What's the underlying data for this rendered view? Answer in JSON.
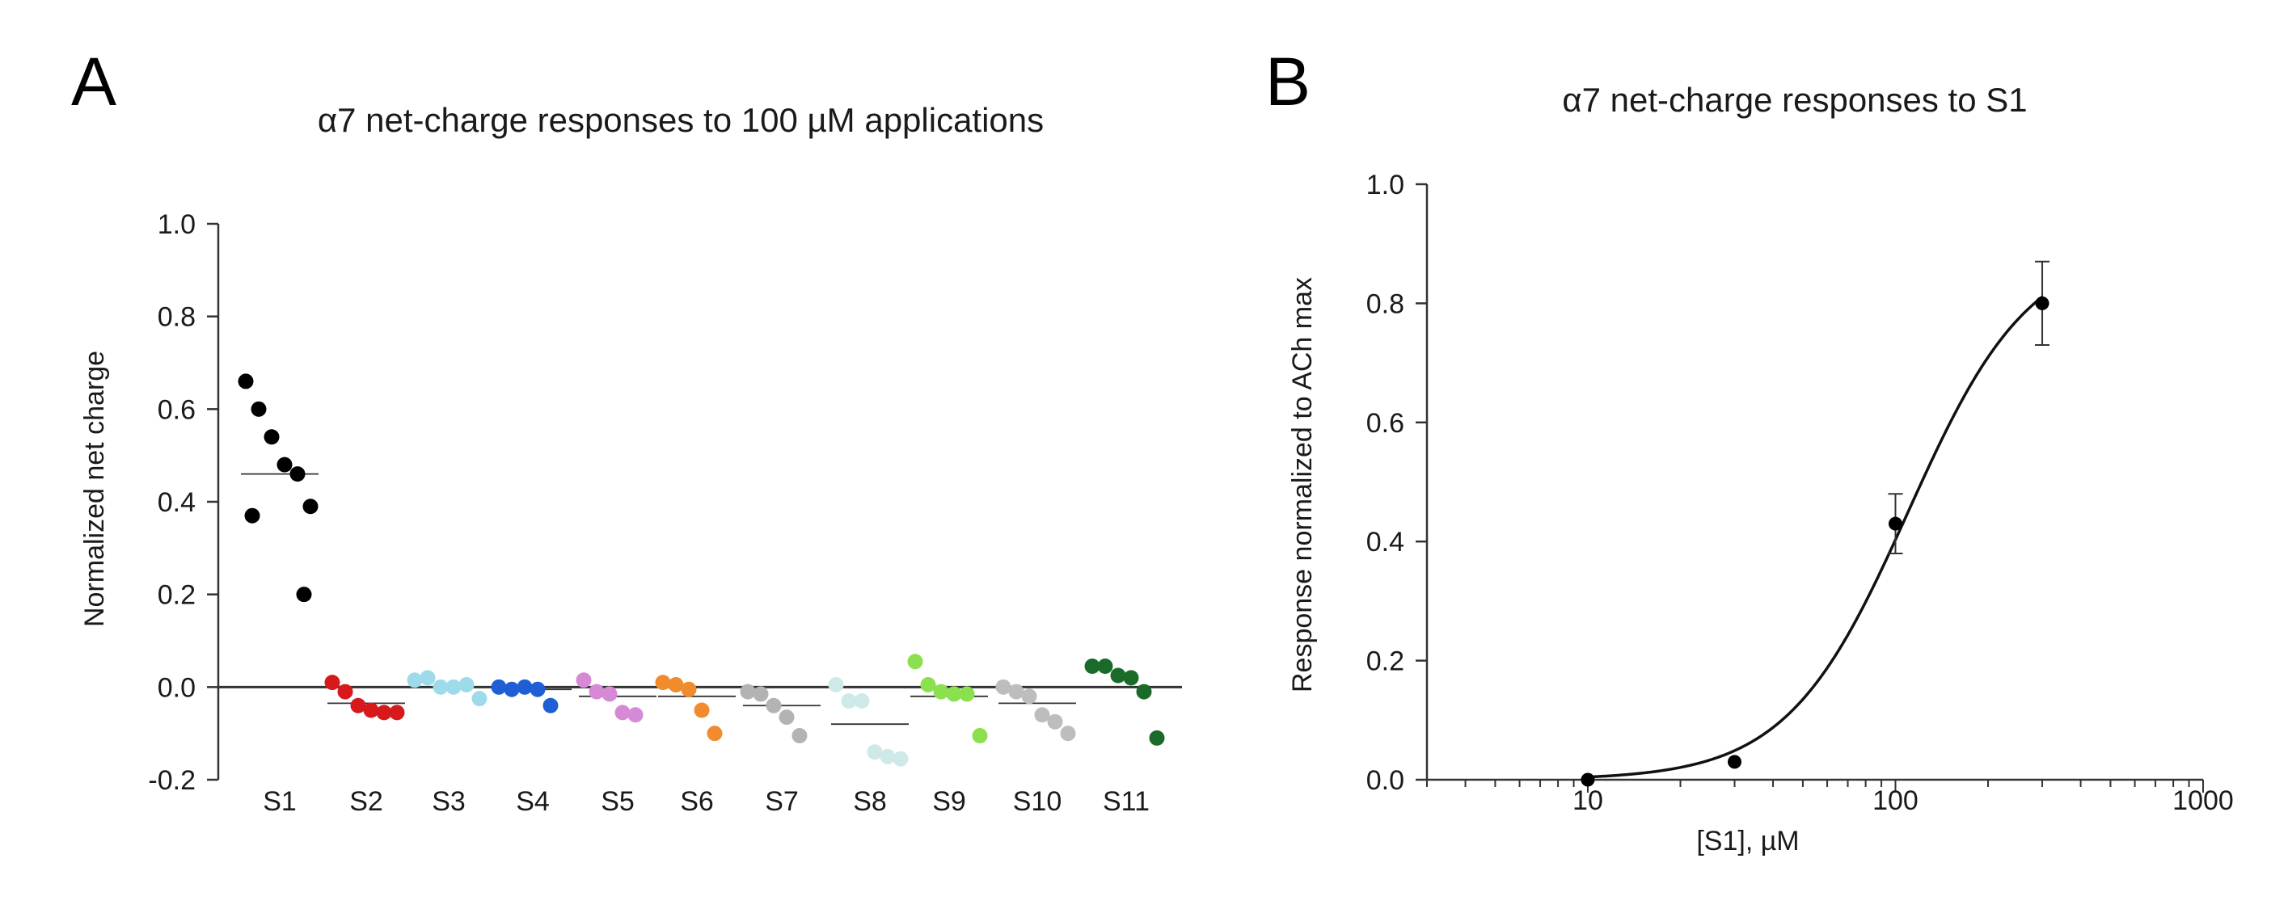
{
  "figure": {
    "panel_a_letter": "A",
    "panel_b_letter": "B"
  },
  "chart_data": [
    {
      "panel": "A",
      "type": "scatter",
      "title": "α7 net-charge responses to 100 µM applications",
      "ylabel": "Normalized net charge",
      "xlabel": "",
      "ylim": [
        -0.2,
        1.0
      ],
      "yticks": [
        -0.2,
        0.0,
        0.2,
        0.4,
        0.6,
        0.8,
        1.0
      ],
      "ytick_labels": [
        "-0.2",
        "0.0",
        "0.2",
        "0.4",
        "0.6",
        "0.8",
        "1.0"
      ],
      "reference_line": 0.0,
      "series": [
        {
          "name": "S1",
          "color": "#000000",
          "values": [
            0.66,
            0.6,
            0.54,
            0.48,
            0.46,
            0.39,
            0.37,
            0.2
          ],
          "mean": 0.46
        },
        {
          "name": "S2",
          "color": "#d7191c",
          "values": [
            0.01,
            -0.01,
            -0.04,
            -0.05,
            -0.055,
            -0.055
          ],
          "mean": -0.035
        },
        {
          "name": "S3",
          "color": "#9edbea",
          "values": [
            0.015,
            0.02,
            0.0,
            0.0,
            0.005,
            -0.025
          ],
          "mean": 0.0
        },
        {
          "name": "S4",
          "color": "#1f5fd6",
          "values": [
            0.0,
            -0.005,
            0.0,
            -0.005,
            -0.04
          ],
          "mean": -0.005
        },
        {
          "name": "S5",
          "color": "#d68ad6",
          "values": [
            0.015,
            -0.01,
            -0.015,
            -0.055,
            -0.06
          ],
          "mean": -0.02
        },
        {
          "name": "S6",
          "color": "#f08c2e",
          "values": [
            0.01,
            0.005,
            -0.005,
            -0.05,
            -0.1
          ],
          "mean": -0.02
        },
        {
          "name": "S7",
          "color": "#b3b3b3",
          "values": [
            -0.01,
            -0.015,
            -0.04,
            -0.065,
            -0.105
          ],
          "mean": -0.04
        },
        {
          "name": "S8",
          "color": "#cfe9e9",
          "values": [
            0.005,
            -0.03,
            -0.03,
            -0.14,
            -0.15,
            -0.155
          ],
          "mean": -0.08
        },
        {
          "name": "S9",
          "color": "#8be04e",
          "values": [
            0.055,
            0.005,
            -0.01,
            -0.015,
            -0.015,
            -0.105
          ],
          "mean": -0.02
        },
        {
          "name": "S10",
          "color": "#bdbdbd",
          "values": [
            0.0,
            -0.01,
            -0.02,
            -0.06,
            -0.075,
            -0.1
          ],
          "mean": -0.035
        },
        {
          "name": "S11",
          "color": "#1a6b2a",
          "values": [
            0.045,
            0.045,
            0.025,
            0.02,
            -0.01,
            -0.11
          ],
          "mean": 0.0
        }
      ]
    },
    {
      "panel": "B",
      "type": "line",
      "title": "α7 net-charge responses to S1",
      "xlabel": "[S1], µM",
      "ylabel": "Response normalized to ACh max",
      "xscale": "log",
      "xlim": [
        3,
        1000
      ],
      "ylim": [
        0.0,
        1.0
      ],
      "xticks": [
        10,
        100,
        1000
      ],
      "xtick_labels": [
        "10",
        "100",
        "1000"
      ],
      "yticks": [
        0.0,
        0.2,
        0.4,
        0.6,
        0.8,
        1.0
      ],
      "ytick_labels": [
        "0.0",
        "0.2",
        "0.4",
        "0.6",
        "0.8",
        "1.0"
      ],
      "points": [
        {
          "x": 10,
          "y": 0.0,
          "err": 0.0
        },
        {
          "x": 30,
          "y": 0.03,
          "err": 0.0
        },
        {
          "x": 100,
          "y": 0.43,
          "err": 0.05
        },
        {
          "x": 300,
          "y": 0.8,
          "err": 0.07
        }
      ],
      "fit": {
        "type": "hill",
        "imax": 0.9,
        "ec50": 110,
        "hill": 2.2
      }
    }
  ]
}
